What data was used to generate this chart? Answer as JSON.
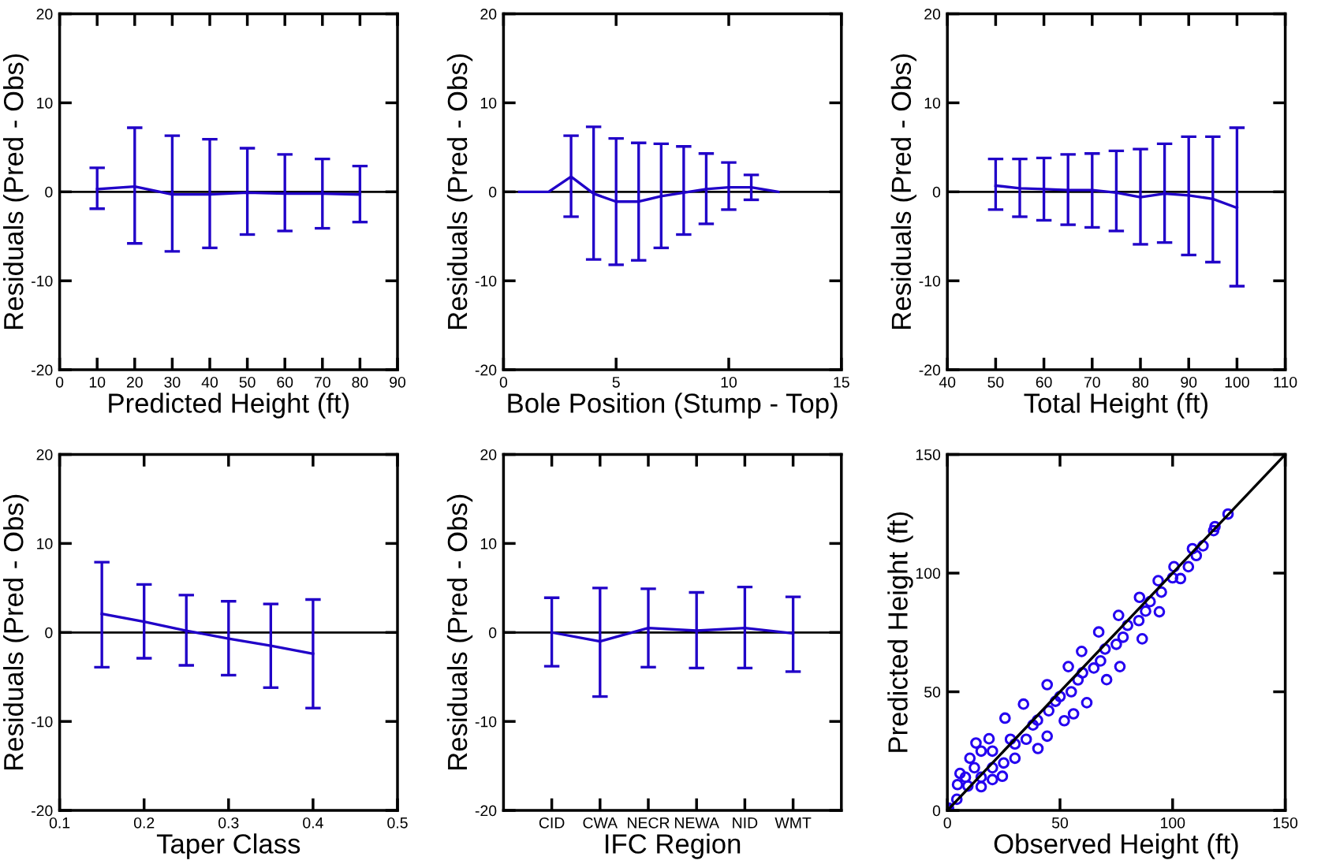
{
  "chart_data": [
    {
      "type": "line",
      "xlabel": "Predicted Height (ft)",
      "ylabel": "Residuals (Pred - Obs)",
      "x": [
        10,
        20,
        30,
        40,
        50,
        60,
        70,
        80
      ],
      "series": [
        {
          "color": "#2000c8",
          "values": [
            0.3,
            0.6,
            -0.3,
            -0.3,
            -0.1,
            -0.2,
            -0.2,
            -0.3
          ],
          "errors": [
            [
              -1.9,
              2.7
            ],
            [
              -5.8,
              7.2
            ],
            [
              -6.7,
              6.3
            ],
            [
              -6.3,
              5.9
            ],
            [
              -4.8,
              4.9
            ],
            [
              -4.4,
              4.2
            ],
            [
              -4.1,
              3.7
            ],
            [
              -3.4,
              2.9
            ]
          ]
        }
      ],
      "xlim": [
        0,
        90
      ],
      "xticks": [
        0,
        10,
        20,
        30,
        40,
        50,
        60,
        70,
        80,
        90
      ],
      "ylim": [
        -20,
        20
      ],
      "yticks": [
        -20,
        -10,
        0,
        10,
        20
      ],
      "ref_lines": [
        {
          "axis": "y",
          "value": 0,
          "color": "#000000"
        }
      ]
    },
    {
      "type": "line",
      "xlabel": "Bole Position (Stump - Top)",
      "ylabel": "Residuals (Pred - Obs)",
      "x": [
        0.7,
        2,
        3,
        4,
        5,
        6,
        7,
        8,
        9,
        10,
        11,
        12.2
      ],
      "series": [
        {
          "color": "#2000c8",
          "values": [
            0,
            0,
            1.7,
            -0.2,
            -1.1,
            -1.1,
            -0.5,
            -0.1,
            0.3,
            0.5,
            0.5,
            0
          ],
          "errors": [
            null,
            null,
            [
              -2.8,
              6.3
            ],
            [
              -7.6,
              7.3
            ],
            [
              -8.2,
              6.0
            ],
            [
              -7.7,
              5.5
            ],
            [
              -6.3,
              5.4
            ],
            [
              -4.8,
              5.1
            ],
            [
              -3.6,
              4.3
            ],
            [
              -2.0,
              3.3
            ],
            [
              -0.9,
              1.9
            ],
            null
          ]
        }
      ],
      "xlim": [
        0,
        15
      ],
      "xticks": [
        0,
        5,
        10,
        15
      ],
      "ylim": [
        -20,
        20
      ],
      "yticks": [
        -20,
        -10,
        0,
        10,
        20
      ],
      "ref_lines": [
        {
          "axis": "y",
          "value": 0,
          "color": "#000000"
        }
      ]
    },
    {
      "type": "line",
      "xlabel": "Total Height (ft)",
      "ylabel": "Residuals (Pred - Obs)",
      "x": [
        50,
        55,
        60,
        65,
        70,
        75,
        80,
        85,
        90,
        95,
        100
      ],
      "series": [
        {
          "color": "#2000c8",
          "values": [
            0.7,
            0.4,
            0.3,
            0.2,
            0.2,
            -0.1,
            -0.6,
            -0.2,
            -0.4,
            -0.8,
            -1.8
          ],
          "errors": [
            [
              -2.0,
              3.7
            ],
            [
              -2.8,
              3.7
            ],
            [
              -3.2,
              3.8
            ],
            [
              -3.7,
              4.2
            ],
            [
              -4.0,
              4.3
            ],
            [
              -4.4,
              4.6
            ],
            [
              -5.9,
              4.8
            ],
            [
              -5.7,
              5.4
            ],
            [
              -7.1,
              6.2
            ],
            [
              -7.9,
              6.2
            ],
            [
              -10.6,
              7.2
            ]
          ]
        }
      ],
      "xlim": [
        40,
        110
      ],
      "xticks": [
        40,
        50,
        60,
        70,
        80,
        90,
        100,
        110
      ],
      "ylim": [
        -20,
        20
      ],
      "yticks": [
        -20,
        -10,
        0,
        10,
        20
      ],
      "ref_lines": [
        {
          "axis": "y",
          "value": 0,
          "color": "#000000"
        }
      ]
    },
    {
      "type": "line",
      "xlabel": "Taper Class",
      "ylabel": "Residuals (Pred - Obs)",
      "x": [
        0.15,
        0.2,
        0.25,
        0.3,
        0.35,
        0.4
      ],
      "series": [
        {
          "color": "#2000c8",
          "values": [
            2.1,
            1.2,
            0.2,
            -0.7,
            -1.5,
            -2.4
          ],
          "errors": [
            [
              -3.9,
              7.9
            ],
            [
              -2.9,
              5.4
            ],
            [
              -3.7,
              4.2
            ],
            [
              -4.8,
              3.5
            ],
            [
              -6.2,
              3.2
            ],
            [
              -8.5,
              3.7
            ]
          ]
        }
      ],
      "xlim": [
        0.1,
        0.5
      ],
      "xticks": [
        0.1,
        0.2,
        0.3,
        0.4,
        0.5
      ],
      "ylim": [
        -20,
        20
      ],
      "yticks": [
        -20,
        -10,
        0,
        10,
        20
      ],
      "ref_lines": [
        {
          "axis": "y",
          "value": 0,
          "color": "#000000"
        }
      ]
    },
    {
      "type": "line",
      "xlabel": "IFC Region",
      "ylabel": "Residuals (Pred - Obs)",
      "categories": [
        "CID",
        "CWA",
        "NECR",
        "NEWA",
        "NID",
        "WMT"
      ],
      "series": [
        {
          "color": "#2000c8",
          "values": [
            0.0,
            -1.0,
            0.5,
            0.2,
            0.5,
            -0.1
          ],
          "errors": [
            [
              -3.8,
              3.9
            ],
            [
              -7.2,
              5.0
            ],
            [
              -3.9,
              4.9
            ],
            [
              -4.0,
              4.5
            ],
            [
              -4.0,
              5.1
            ],
            [
              -4.4,
              4.0
            ]
          ]
        }
      ],
      "ylim": [
        -20,
        20
      ],
      "yticks": [
        -20,
        -10,
        0,
        10,
        20
      ],
      "ref_lines": [
        {
          "axis": "y",
          "value": 0,
          "color": "#000000"
        }
      ]
    },
    {
      "type": "scatter",
      "xlabel": "Observed Height (ft)",
      "ylabel": "Predicted Height (ft)",
      "series": [
        {
          "type": "scatter",
          "marker": "circle",
          "color": "#2400f0",
          "x": [
            0,
            0.5,
            4.2,
            5.6,
            12.7,
            18.5,
            25.6,
            33.8,
            44.3,
            53.7,
            59.6,
            67.2,
            76,
            85.3,
            93.6,
            100.6,
            108.8,
            118.8,
            124.6,
            4.5,
            9.1,
            24.4,
            40.2,
            44.3,
            51.9,
            56,
            61.9,
            70.7,
            76.6,
            86.5,
            94.1,
            103.5,
            107,
            110.5,
            113.5,
            118.2,
            15,
            20,
            30,
            40,
            50,
            60,
            70,
            80,
            90,
            100,
            10,
            15,
            20,
            15,
            20,
            30,
            35,
            45,
            55,
            65,
            75,
            85,
            95,
            8,
            12,
            25,
            28,
            38,
            48,
            58,
            68,
            78,
            88
          ],
          "values": [
            0.5,
            1,
            4.7,
            15.6,
            28.4,
            30.2,
            38.9,
            44.8,
            53,
            60.6,
            67,
            75.2,
            82.2,
            89.8,
            96.8,
            102.7,
            110.3,
            119.6,
            124.9,
            10.9,
            10.3,
            14.4,
            26.1,
            31.3,
            37.8,
            40.7,
            45.4,
            55.1,
            60.6,
            72.3,
            83.7,
            97.7,
            102.7,
            107.4,
            111.5,
            117.9,
            14,
            18,
            28,
            38,
            48,
            58,
            68,
            78,
            88,
            98,
            22,
            25,
            25,
            10,
            13,
            22,
            30,
            42,
            50,
            60,
            70,
            80,
            92,
            14,
            18,
            20,
            30,
            36,
            46,
            55,
            63,
            73,
            84
          ]
        },
        {
          "type": "line",
          "color": "#000000",
          "x": [
            0,
            150
          ],
          "values": [
            0,
            150
          ]
        }
      ],
      "xlim": [
        0,
        150
      ],
      "xticks": [
        0,
        50,
        100,
        150
      ],
      "ylim": [
        0,
        150
      ],
      "yticks": [
        0,
        50,
        100,
        150
      ]
    }
  ]
}
